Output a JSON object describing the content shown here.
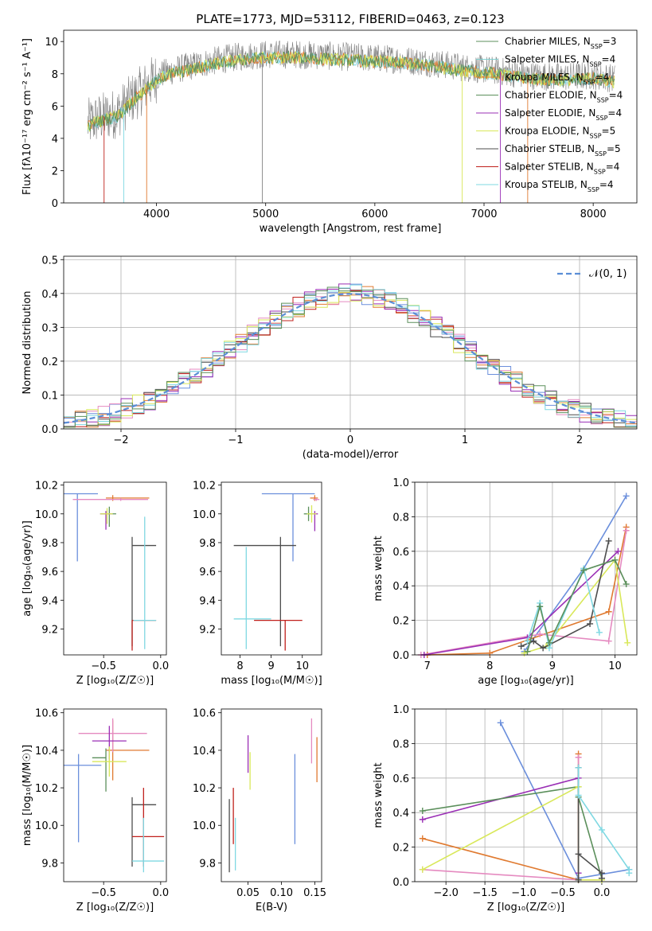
{
  "chart_data": [
    {
      "type": "line",
      "panel": "spectrum",
      "title": "PLATE=1773, MJD=53112, FIBERID=0463, z=0.123",
      "xlabel": "wavelength [Angstrom, rest frame]",
      "ylabel": "Flux [fλ10⁻¹⁷ erg cm⁻² s⁻¹ A⁻¹]",
      "xlim": [
        3150,
        8400
      ],
      "ylim": [
        0,
        10.7
      ],
      "xticks": [
        4000,
        5000,
        6000,
        7000,
        8000
      ],
      "yticks": [
        0,
        2,
        4,
        6,
        8,
        10
      ],
      "grid": false,
      "legend_position": "right",
      "observed_envelope": {
        "x": [
          3370,
          3450,
          3550,
          3650,
          3750,
          3850,
          3950,
          4050,
          4200,
          4400,
          4600,
          4800,
          5000,
          5300,
          5600,
          5900,
          6200,
          6500,
          6800,
          7100,
          7400,
          7700,
          8000,
          8200
        ],
        "y": [
          4.9,
          5.2,
          5.4,
          5.6,
          6.3,
          6.9,
          7.5,
          8.0,
          8.3,
          8.6,
          8.9,
          9.1,
          9.2,
          9.2,
          9.1,
          9.0,
          8.9,
          8.7,
          8.4,
          8.2,
          7.9,
          7.8,
          7.9,
          7.7
        ]
      },
      "legend": [
        {
          "label": "Chabrier MILES, N",
          "sub": "SSP",
          "suffix": "=3",
          "color": "#5b8f5b"
        },
        {
          "label": "Salpeter MILES, N",
          "sub": "SSP",
          "suffix": "=4",
          "color": "#7fd1d1"
        },
        {
          "label": "Kroupa MILES, N",
          "sub": "SSP",
          "suffix": "=4",
          "color": "#e08a2c"
        },
        {
          "label": "Chabrier ELODIE, N",
          "sub": "SSP",
          "suffix": "=4",
          "color": "#5b8f5b"
        },
        {
          "label": "Salpeter ELODIE, N",
          "sub": "SSP",
          "suffix": "=4",
          "color": "#9a2fb5"
        },
        {
          "label": "Kroupa ELODIE, N",
          "sub": "SSP",
          "suffix": "=5",
          "color": "#d9e85a"
        },
        {
          "label": "Chabrier STELIB, N",
          "sub": "SSP",
          "suffix": "=5",
          "color": "#4d4d4d"
        },
        {
          "label": "Salpeter STELIB, N",
          "sub": "SSP",
          "suffix": "=4",
          "color": "#c0201c"
        },
        {
          "label": "Kroupa STELIB, N",
          "sub": "SSP",
          "suffix": "=4",
          "color": "#7fd8e2"
        }
      ]
    },
    {
      "type": "bar",
      "panel": "residual-histogram",
      "xlabel": "(data-model)/error",
      "ylabel": "Normed distribution",
      "xlim": [
        -2.5,
        2.5
      ],
      "ylim": [
        0,
        0.51
      ],
      "xticks": [
        -2,
        -1,
        0,
        1,
        2
      ],
      "yticks": [
        0.0,
        0.1,
        0.2,
        0.3,
        0.4,
        0.5
      ],
      "grid": true,
      "legend_position": "top-right",
      "gaussian_label": "𝒩(0, 1)",
      "bin_width": 0.1,
      "hist_colors": [
        "#6b8fdc",
        "#e07a30",
        "#e58ac0",
        "#4d4d4d",
        "#c0201c",
        "#9a2fb5",
        "#d9e85a",
        "#7fd8e2",
        "#5b8f5b"
      ]
    },
    {
      "type": "scatter",
      "panel": "age-vs-Z",
      "xlabel": "Z [log₁₀(Z/Z☉)]",
      "ylabel": "age  [log₁₀(age/yr)]",
      "xlim": [
        -0.85,
        0.05
      ],
      "ylim": [
        9.02,
        10.22
      ],
      "xticks": [
        -0.5,
        0.0
      ],
      "yticks": [
        9.2,
        9.4,
        9.6,
        9.8,
        10.0,
        10.2
      ],
      "points": [
        {
          "x": -0.73,
          "y": 10.14,
          "xerr": [
            0.12,
            0.18
          ],
          "yerr": [
            0.47,
            0
          ],
          "color": "#6b8fdc"
        },
        {
          "x": -0.42,
          "y": 10.11,
          "xerr": [
            0.06,
            0.32
          ],
          "yerr": [
            0.02,
            0.02
          ],
          "color": "#e07a30"
        },
        {
          "x": -0.35,
          "y": 10.1,
          "xerr": [
            0.42,
            0.24
          ],
          "yerr": [
            0.01,
            0.01
          ],
          "color": "#e58ac0"
        },
        {
          "x": -0.45,
          "y": 10.0,
          "xerr": [
            0.08,
            0.06
          ],
          "yerr": [
            0.09,
            0.05
          ],
          "color": "#5b8f5b"
        },
        {
          "x": -0.48,
          "y": 10.0,
          "xerr": [
            0.05,
            0.05
          ],
          "yerr": [
            0.11,
            0.02
          ],
          "color": "#9a2fb5"
        },
        {
          "x": -0.47,
          "y": 10.0,
          "xerr": [
            0.06,
            0.05
          ],
          "yerr": [
            0.07,
            0.04
          ],
          "color": "#d9e85a"
        },
        {
          "x": -0.25,
          "y": 9.78,
          "xerr": [
            0,
            0.21
          ],
          "yerr": [
            0.7,
            0.06
          ],
          "color": "#4d4d4d"
        },
        {
          "x": -0.25,
          "y": 9.26,
          "xerr": [
            0,
            0.21
          ],
          "yerr": [
            0.21,
            0
          ],
          "color": "#c0201c"
        },
        {
          "x": -0.14,
          "y": 9.26,
          "xerr": [
            0.1,
            0.1
          ],
          "yerr": [
            0.2,
            0.72
          ],
          "color": "#7fd8e2"
        }
      ]
    },
    {
      "type": "scatter",
      "panel": "age-vs-mass",
      "xlabel": "mass [log₁₀(M/M☉)]",
      "xlim": [
        7.4,
        10.62
      ],
      "ylim": [
        9.02,
        10.22
      ],
      "xticks": [
        8,
        9,
        10
      ],
      "yticks": [
        9.2,
        9.4,
        9.6,
        9.8,
        10.0,
        10.2
      ],
      "points": [
        {
          "x": 9.7,
          "y": 10.14,
          "xerr": [
            1.0,
            0.7
          ],
          "yerr": [
            0.47,
            0
          ],
          "color": "#6b8fdc"
        },
        {
          "x": 10.4,
          "y": 10.11,
          "xerr": [
            0.15,
            0.1
          ],
          "yerr": [
            0.02,
            0.02
          ],
          "color": "#e07a30"
        },
        {
          "x": 10.45,
          "y": 10.1,
          "xerr": [
            0.1,
            0.1
          ],
          "yerr": [
            0.01,
            0.01
          ],
          "color": "#e58ac0"
        },
        {
          "x": 10.2,
          "y": 10.0,
          "xerr": [
            0.15,
            0.1
          ],
          "yerr": [
            0.05,
            0.05
          ],
          "color": "#5b8f5b"
        },
        {
          "x": 10.4,
          "y": 10.0,
          "xerr": [
            0.1,
            0.1
          ],
          "yerr": [
            0.12,
            0.02
          ],
          "color": "#9a2fb5"
        },
        {
          "x": 10.3,
          "y": 10.0,
          "xerr": [
            0.15,
            0.15
          ],
          "yerr": [
            0.06,
            0.06
          ],
          "color": "#d9e85a"
        },
        {
          "x": 9.3,
          "y": 9.78,
          "xerr": [
            1.5,
            0.5
          ],
          "yerr": [
            0.7,
            0.06
          ],
          "color": "#4d4d4d"
        },
        {
          "x": 9.45,
          "y": 9.26,
          "xerr": [
            1.0,
            0.55
          ],
          "yerr": [
            0.21,
            0
          ],
          "color": "#c0201c"
        },
        {
          "x": 8.2,
          "y": 9.27,
          "xerr": [
            0.4,
            0.8
          ],
          "yerr": [
            0.21,
            0.5
          ],
          "color": "#7fd8e2"
        }
      ]
    },
    {
      "type": "line",
      "panel": "weight-vs-age",
      "xlabel": "age  [log₁₀(age/yr)]",
      "ylabel": "mass weight",
      "xlim": [
        6.8,
        10.35
      ],
      "ylim": [
        0,
        1.0
      ],
      "xticks": [
        7,
        8,
        9,
        10
      ],
      "yticks": [
        0.0,
        0.2,
        0.4,
        0.6,
        0.8,
        1.0
      ],
      "grid": true,
      "series": [
        {
          "color": "#6b8fdc",
          "x": [
            8.55,
            9.5,
            10.18
          ],
          "y": [
            0.02,
            0.5,
            0.92
          ]
        },
        {
          "color": "#e07a30",
          "x": [
            7.0,
            8.0,
            9.9,
            10.18
          ],
          "y": [
            0.0,
            0.01,
            0.25,
            0.74
          ]
        },
        {
          "color": "#e58ac0",
          "x": [
            6.9,
            8.8,
            9.9,
            10.18
          ],
          "y": [
            0.0,
            0.12,
            0.08,
            0.72
          ]
        },
        {
          "color": "#9a2fb5",
          "x": [
            6.95,
            8.6,
            10.05
          ],
          "y": [
            0.0,
            0.1,
            0.6
          ]
        },
        {
          "color": "#d9e85a",
          "x": [
            8.55,
            8.9,
            10.0,
            10.2
          ],
          "y": [
            0.01,
            0.05,
            0.55,
            0.07
          ]
        },
        {
          "color": "#4d4d4d",
          "x": [
            8.5,
            8.7,
            8.85,
            9.6,
            9.9
          ],
          "y": [
            0.05,
            0.08,
            0.04,
            0.18,
            0.66
          ]
        },
        {
          "color": "#7fd8e2",
          "x": [
            8.6,
            8.8,
            8.95,
            9.5,
            9.75
          ],
          "y": [
            0.08,
            0.3,
            0.04,
            0.5,
            0.13
          ]
        },
        {
          "color": "#5b8f5b",
          "x": [
            8.6,
            8.8,
            8.95,
            9.5,
            10.0,
            10.18
          ],
          "y": [
            0.02,
            0.28,
            0.07,
            0.49,
            0.55,
            0.41
          ]
        }
      ]
    },
    {
      "type": "scatter",
      "panel": "mass-vs-Z",
      "xlabel": "Z [log₁₀(Z/Z☉)]",
      "ylabel": "mass [log₁₀(M/M☉)]",
      "xlim": [
        -0.85,
        0.05
      ],
      "ylim": [
        9.7,
        10.62
      ],
      "xticks": [
        -0.5,
        0.0
      ],
      "yticks": [
        9.8,
        10.0,
        10.2,
        10.4,
        10.6
      ],
      "points": [
        {
          "x": -0.72,
          "y": 10.32,
          "xerr": [
            0.14,
            0.2
          ],
          "yerr": [
            0.41,
            0.06
          ],
          "color": "#6b8fdc"
        },
        {
          "x": -0.42,
          "y": 10.4,
          "xerr": [
            0.06,
            0.32
          ],
          "yerr": [
            0.16,
            0.16
          ],
          "color": "#e07a30"
        },
        {
          "x": -0.42,
          "y": 10.49,
          "xerr": [
            0.3,
            0.3
          ],
          "yerr": [
            0.1,
            0.08
          ],
          "color": "#e58ac0"
        },
        {
          "x": -0.48,
          "y": 10.36,
          "xerr": [
            0.12,
            0.0
          ],
          "yerr": [
            0.18,
            0.05
          ],
          "color": "#5b8f5b"
        },
        {
          "x": -0.45,
          "y": 10.45,
          "xerr": [
            0.15,
            0.15
          ],
          "yerr": [
            0.1,
            0.08
          ],
          "color": "#9a2fb5"
        },
        {
          "x": -0.45,
          "y": 10.34,
          "xerr": [
            0.15,
            0.15
          ],
          "yerr": [
            0.08,
            0.08
          ],
          "color": "#d9e85a"
        },
        {
          "x": -0.25,
          "y": 10.11,
          "xerr": [
            0,
            0.21
          ],
          "yerr": [
            0.33,
            0.04
          ],
          "color": "#4d4d4d"
        },
        {
          "x": -0.15,
          "y": 9.94,
          "xerr": [
            0.1,
            0.18
          ],
          "yerr": [
            0.16,
            0.26
          ],
          "color": "#c0201c"
        },
        {
          "x": -0.15,
          "y": 9.81,
          "xerr": [
            0.1,
            0.18
          ],
          "yerr": [
            0.06,
            0.23
          ],
          "color": "#7fd8e2"
        }
      ]
    },
    {
      "type": "scatter",
      "panel": "mass-vs-ebv",
      "xlabel": "E(B-V)",
      "xlim": [
        0.01,
        0.16
      ],
      "ylim": [
        9.7,
        10.62
      ],
      "xticks": [
        0.05,
        0.1,
        0.15
      ],
      "yticks": [
        9.8,
        10.0,
        10.2,
        10.4,
        10.6
      ],
      "points": [
        {
          "x": 0.022,
          "y": 10.05,
          "yerr": [
            0.3,
            0.09
          ],
          "color": "#4d4d4d"
        },
        {
          "x": 0.028,
          "y": 10.05,
          "yerr": [
            0.15,
            0.15
          ],
          "color": "#c0201c"
        },
        {
          "x": 0.031,
          "y": 9.9,
          "yerr": [
            0.14,
            0.14
          ],
          "color": "#7fd8e2"
        },
        {
          "x": 0.05,
          "y": 10.38,
          "yerr": [
            0.1,
            0.1
          ],
          "color": "#9a2fb5"
        },
        {
          "x": 0.053,
          "y": 10.29,
          "yerr": [
            0.1,
            0.1
          ],
          "color": "#d9e85a"
        },
        {
          "x": 0.12,
          "y": 10.14,
          "yerr": [
            0.24,
            0.24
          ],
          "color": "#6b8fdc"
        },
        {
          "x": 0.145,
          "y": 10.45,
          "yerr": [
            0.12,
            0.12
          ],
          "color": "#e58ac0"
        },
        {
          "x": 0.153,
          "y": 10.35,
          "yerr": [
            0.12,
            0.12
          ],
          "color": "#e07a30"
        }
      ]
    },
    {
      "type": "line",
      "panel": "weight-vs-Z",
      "xlabel": "Z [log₁₀(Z/Z☉)]",
      "ylabel": "mass weight",
      "xlim": [
        -2.4,
        0.45
      ],
      "ylim": [
        0,
        1.0
      ],
      "xticks": [
        -2.0,
        -1.5,
        -1.0,
        -0.5,
        0.0
      ],
      "yticks": [
        0.0,
        0.2,
        0.4,
        0.6,
        0.8,
        1.0
      ],
      "grid": true,
      "series": [
        {
          "color": "#6b8fdc",
          "x": [
            -1.3,
            -0.3,
            0.35
          ],
          "y": [
            0.92,
            0.02,
            0.07
          ]
        },
        {
          "color": "#e07a30",
          "x": [
            -2.3,
            -0.3,
            -0.3
          ],
          "y": [
            0.25,
            0.01,
            0.74
          ]
        },
        {
          "color": "#e58ac0",
          "x": [
            -2.3,
            -0.3,
            -0.3
          ],
          "y": [
            0.07,
            0.01,
            0.72
          ]
        },
        {
          "color": "#9a2fb5",
          "x": [
            -2.3,
            -0.3,
            -0.3
          ],
          "y": [
            0.36,
            0.6,
            0.05
          ]
        },
        {
          "color": "#5b8f5b",
          "x": [
            -2.3,
            -0.3,
            -0.3,
            0.0
          ],
          "y": [
            0.41,
            0.55,
            0.49,
            0.02
          ]
        },
        {
          "color": "#d9e85a",
          "x": [
            -2.3,
            -0.3,
            -0.3,
            0.0
          ],
          "y": [
            0.07,
            0.55,
            0.01,
            0.01
          ]
        },
        {
          "color": "#4d4d4d",
          "x": [
            -0.3,
            -0.3,
            -0.3,
            0.0,
            0.0
          ],
          "y": [
            0.66,
            0.01,
            0.16,
            0.05,
            0.02
          ]
        },
        {
          "color": "#7fd8e2",
          "x": [
            -0.3,
            -0.3,
            0.0,
            0.35,
            0.35
          ],
          "y": [
            0.66,
            0.5,
            0.3,
            0.07,
            0.05
          ]
        }
      ]
    }
  ]
}
